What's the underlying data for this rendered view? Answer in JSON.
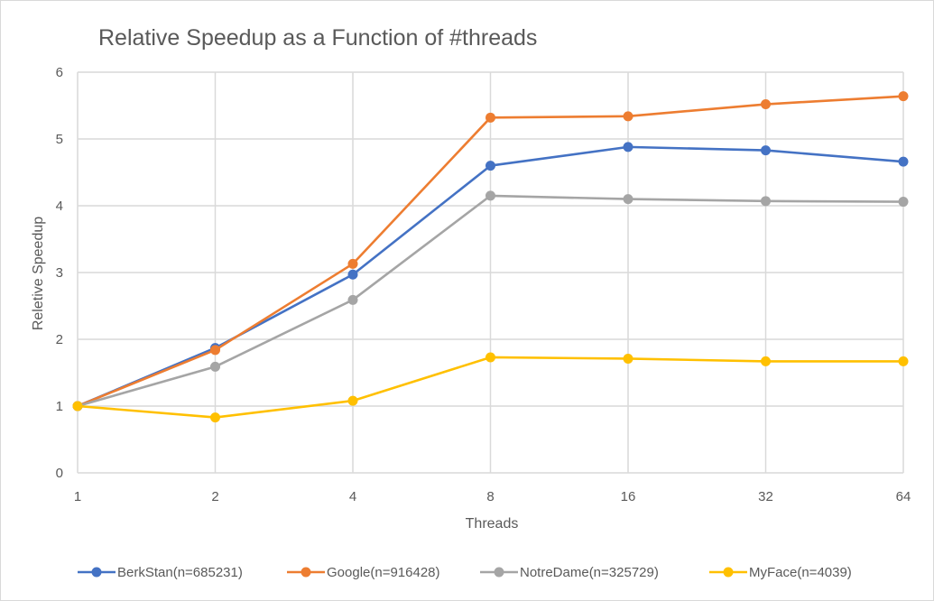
{
  "chart_data": {
    "type": "line",
    "title": "Relative Speedup as a Function of #threads",
    "xlabel": "Threads",
    "ylabel": "Reletive Speedup",
    "categories": [
      "1",
      "2",
      "4",
      "8",
      "16",
      "32",
      "64"
    ],
    "ylim": [
      0,
      6
    ],
    "yticks": [
      0,
      1,
      2,
      3,
      4,
      5,
      6
    ],
    "grid": true,
    "legend_position": "bottom",
    "series": [
      {
        "name": "BerkStan(n=685231)",
        "color": "#4472c4",
        "values": [
          1.0,
          1.87,
          2.97,
          4.6,
          4.88,
          4.83,
          4.66
        ]
      },
      {
        "name": "Google(n=916428)",
        "color": "#ed7d31",
        "values": [
          1.0,
          1.84,
          3.13,
          5.32,
          5.34,
          5.52,
          5.64
        ]
      },
      {
        "name": "NotreDame(n=325729)",
        "color": "#a5a5a5",
        "values": [
          1.0,
          1.59,
          2.59,
          4.15,
          4.1,
          4.07,
          4.06
        ]
      },
      {
        "name": "MyFace(n=4039)",
        "color": "#ffc000",
        "values": [
          1.0,
          0.83,
          1.08,
          1.73,
          1.71,
          1.67,
          1.67
        ]
      }
    ]
  }
}
